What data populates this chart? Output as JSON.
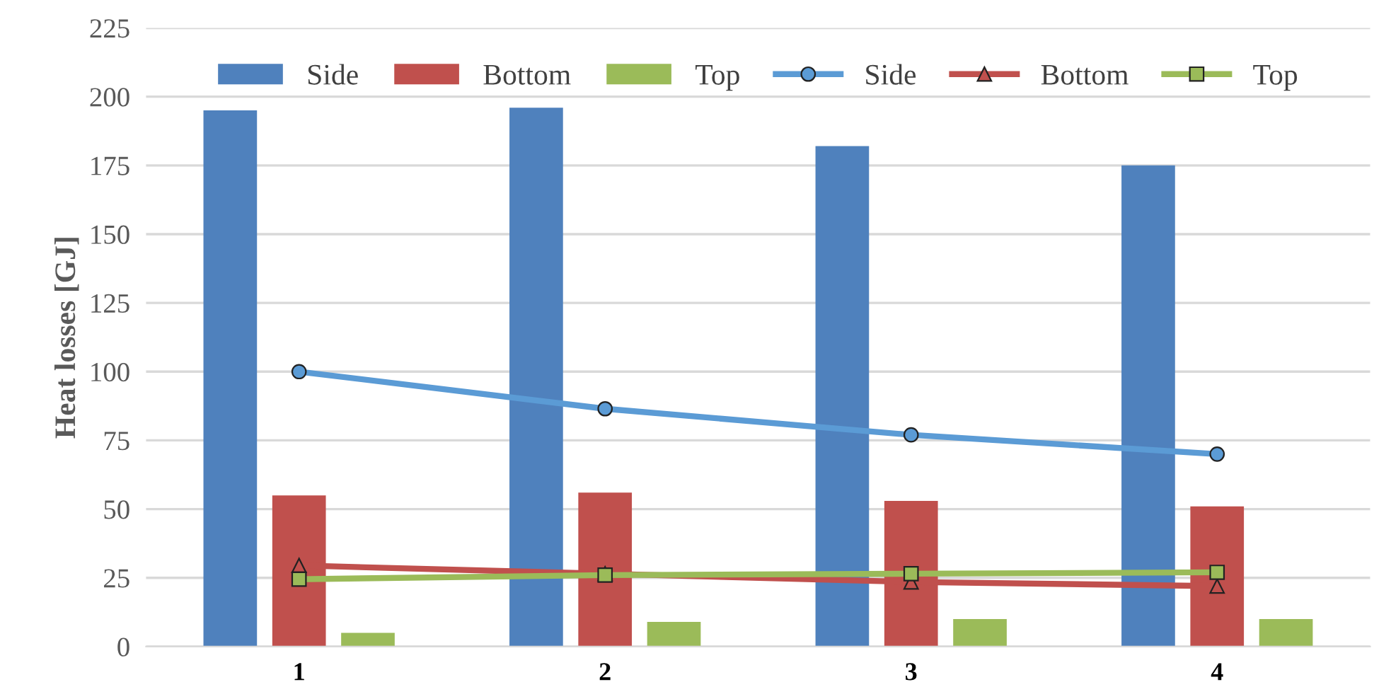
{
  "chart_data": {
    "type": "bar",
    "ylabel": "Heat losses [GJ]",
    "categories": [
      "1",
      "2",
      "3",
      "4"
    ],
    "series": [
      {
        "name": "Side",
        "color": "#4f81bd",
        "values": [
          195,
          196,
          182,
          175
        ]
      },
      {
        "name": "Bottom",
        "color": "#c0504d",
        "values": [
          55,
          56,
          53,
          51
        ]
      },
      {
        "name": "Top",
        "color": "#9bbb59",
        "values": [
          5,
          9,
          10,
          10
        ]
      },
      {
        "name": "Side",
        "type": "line",
        "color": "#5b9bd5",
        "marker": "circle",
        "values": [
          100,
          86.5,
          77,
          70
        ]
      },
      {
        "name": "Bottom",
        "type": "line",
        "color": "#c0504d",
        "marker": "triangle",
        "values": [
          29.5,
          26.5,
          23.5,
          22
        ]
      },
      {
        "name": "Top",
        "type": "line",
        "color": "#9bbb59",
        "marker": "square",
        "values": [
          24.5,
          26,
          26.5,
          27
        ]
      }
    ],
    "ylim": [
      0,
      225
    ],
    "yticks": [
      0,
      25,
      50,
      75,
      100,
      125,
      150,
      175,
      200,
      225
    ],
    "grid": "y",
    "legend": "top"
  }
}
